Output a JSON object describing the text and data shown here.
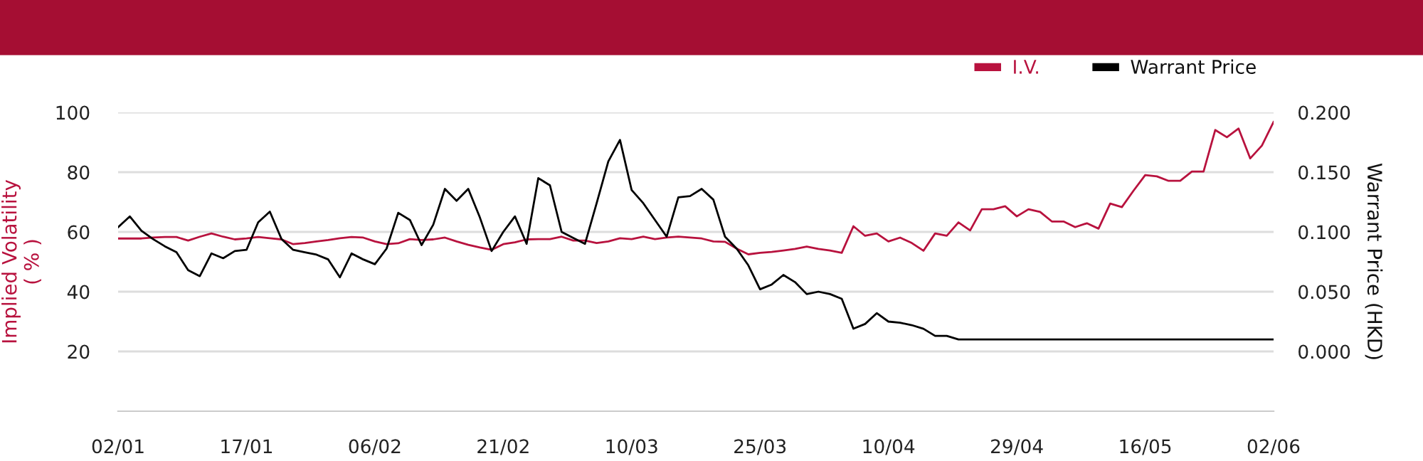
{
  "chart_data": {
    "type": "line",
    "categories": [
      "02/01",
      null,
      null,
      null,
      null,
      null,
      null,
      null,
      null,
      null,
      null,
      "17/01",
      null,
      null,
      null,
      null,
      null,
      null,
      null,
      null,
      null,
      null,
      "06/02",
      null,
      null,
      null,
      null,
      null,
      null,
      null,
      null,
      null,
      null,
      "21/02",
      null,
      null,
      null,
      null,
      null,
      null,
      null,
      null,
      null,
      null,
      "10/03",
      null,
      null,
      null,
      null,
      null,
      null,
      null,
      null,
      null,
      null,
      "25/03",
      null,
      null,
      null,
      null,
      null,
      null,
      null,
      null,
      null,
      null,
      "10/04",
      null,
      null,
      null,
      null,
      null,
      null,
      null,
      null,
      null,
      null,
      "29/04",
      null,
      null,
      null,
      null,
      null,
      null,
      null,
      null,
      null,
      null,
      "16/05",
      null,
      null,
      null,
      null,
      null,
      null,
      null,
      null,
      null,
      null,
      "02/06"
    ],
    "ylabel": "Implied Volatility\n( % )",
    "y2label": "Warrant Price (HKD)",
    "ylim": [
      0,
      100
    ],
    "yticks": [
      20,
      40,
      60,
      80,
      100
    ],
    "y2lim": [
      -0.05,
      0.2
    ],
    "y2ticks": [
      {
        "value": 0,
        "label": "0.000"
      },
      {
        "value": 0.05,
        "label": "0.050"
      },
      {
        "value": 0.1,
        "label": "0.100"
      },
      {
        "value": 0.15,
        "label": "0.150"
      },
      {
        "value": 0.2,
        "label": "0.200"
      }
    ],
    "grid": "y",
    "legend": "top right",
    "marker": "none",
    "line_style": "solid",
    "series": [
      {
        "name": "I.V.",
        "color": "#b8123e",
        "values": [
          57.8,
          57.8,
          57.8,
          58.1,
          58.3,
          58.3,
          57.1,
          58.4,
          59.5,
          58.4,
          57.5,
          57.8,
          58.3,
          57.9,
          57.5,
          55.9,
          56.3,
          56.8,
          57.3,
          57.9,
          58.3,
          58.1,
          56.8,
          55.9,
          56.2,
          57.6,
          57.3,
          57.5,
          58.1,
          56.8,
          55.7,
          54.8,
          54.0,
          55.9,
          56.5,
          57.5,
          57.6,
          57.6,
          58.4,
          57.1,
          57.1,
          56.3,
          56.8,
          57.9,
          57.6,
          58.4,
          57.6,
          58.1,
          58.4,
          58.1,
          57.8,
          56.8,
          56.7,
          54.4,
          52.5,
          53.0,
          53.3,
          53.8,
          54.3,
          55.1,
          54.3,
          53.8,
          53.0,
          61.9,
          58.7,
          59.5,
          56.8,
          58.1,
          56.3,
          53.7,
          59.5,
          58.7,
          63.2,
          60.5,
          67.6,
          67.6,
          68.6,
          65.2,
          67.6,
          66.7,
          63.5,
          63.5,
          61.6,
          62.9,
          61.1,
          69.5,
          68.3,
          73.8,
          79.0,
          78.6,
          77.1,
          77.1,
          80.2,
          80.2,
          94.1,
          91.7,
          94.6,
          84.6,
          88.9,
          96.8
        ]
      },
      {
        "name": "Warrant Price",
        "color": "#000000",
        "axis": "y2",
        "values": [
          0.104,
          0.113,
          0.101,
          0.094,
          0.088,
          0.083,
          0.068,
          0.063,
          0.082,
          0.078,
          0.084,
          0.085,
          0.108,
          0.117,
          0.094,
          0.085,
          0.083,
          0.081,
          0.077,
          0.062,
          0.082,
          0.077,
          0.073,
          0.086,
          0.116,
          0.11,
          0.089,
          0.106,
          0.136,
          0.126,
          0.136,
          0.112,
          0.084,
          0.1,
          0.113,
          0.09,
          0.145,
          0.139,
          0.1,
          0.095,
          0.09,
          0.124,
          0.159,
          0.177,
          0.135,
          0.124,
          0.11,
          0.096,
          0.129,
          0.13,
          0.136,
          0.127,
          0.096,
          0.086,
          0.072,
          0.052,
          0.056,
          0.064,
          0.058,
          0.048,
          0.05,
          0.048,
          0.044,
          0.019,
          0.023,
          0.032,
          0.025,
          0.024,
          0.022,
          0.019,
          0.013,
          0.013,
          0.01,
          0.01,
          0.01,
          0.01,
          0.01,
          0.01,
          0.01,
          0.01,
          0.01,
          0.01,
          0.01,
          0.01,
          0.01,
          0.01,
          0.01,
          0.01,
          0.01,
          0.01,
          0.01,
          0.01,
          0.01,
          0.01,
          0.01,
          0.01,
          0.01,
          0.01,
          0.01,
          0.01
        ]
      }
    ]
  }
}
